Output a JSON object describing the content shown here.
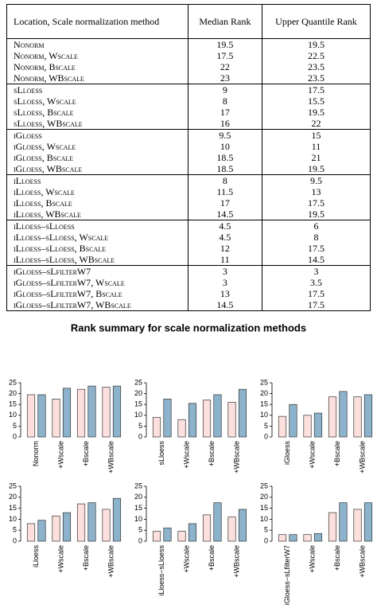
{
  "table": {
    "header": [
      "Location, Scale normalization method",
      "Median Rank",
      "Upper Quantile Rank"
    ],
    "groups": [
      [
        [
          "Nonorm",
          19.5,
          19.5
        ],
        [
          "Nonorm, Wscale",
          17.5,
          22.5
        ],
        [
          "Nonorm, Bscale",
          22,
          23.5
        ],
        [
          "Nonorm, WBscale",
          23,
          23.5
        ]
      ],
      [
        [
          "sLloess",
          9,
          17.5
        ],
        [
          "sLloess, Wscale",
          8,
          15.5
        ],
        [
          "sLloess, Bscale",
          17,
          19.5
        ],
        [
          "sLloess, WBscale",
          16,
          22
        ]
      ],
      [
        [
          "iGloess",
          9.5,
          15
        ],
        [
          "iGloess, Wscale",
          10,
          11
        ],
        [
          "iGloess, Bscale",
          18.5,
          21
        ],
        [
          "iGloess, WBscale",
          18.5,
          19.5
        ]
      ],
      [
        [
          "iLloess",
          8,
          9.5
        ],
        [
          "iLloess, Wscale",
          11.5,
          13
        ],
        [
          "iLloess, Bscale",
          17,
          17.5
        ],
        [
          "iLloess, WBscale",
          14.5,
          19.5
        ]
      ],
      [
        [
          "iLloess–sLloess",
          4.5,
          6
        ],
        [
          "iLloess–sLloess, Wscale",
          4.5,
          8
        ],
        [
          "iLloess–sLloess, Bscale",
          12,
          17.5
        ],
        [
          "iLloess–sLloess, WBscale",
          11,
          14.5
        ]
      ],
      [
        [
          "iGloess–sLfilterW7",
          3,
          3
        ],
        [
          "iGloess–sLfilterW7, Wscale",
          3,
          3.5
        ],
        [
          "iGloess–sLfilterW7, Bscale",
          13,
          17.5
        ],
        [
          "iGloess–sLfilterW7, WBscale",
          14.5,
          17.5
        ]
      ]
    ]
  },
  "figure_title": "Rank summary for scale normalization methods",
  "chart_data": [
    {
      "type": "bar",
      "categories": [
        "Nonorm",
        "+Wscale",
        "+Bscale",
        "+WBscale"
      ],
      "series": [
        {
          "color": "#fde0dd",
          "values": [
            19.5,
            17.5,
            22,
            23
          ]
        },
        {
          "color": "#8db3cc",
          "values": [
            19.5,
            22.5,
            23.5,
            23.5
          ]
        }
      ],
      "ylim": [
        0,
        25
      ],
      "yticks": [
        0,
        5,
        10,
        15,
        20,
        25
      ]
    },
    {
      "type": "bar",
      "categories": [
        "sLloess",
        "+Wscale",
        "+Bscale",
        "+WBscale"
      ],
      "series": [
        {
          "color": "#fde0dd",
          "values": [
            9,
            8,
            17,
            16
          ]
        },
        {
          "color": "#8db3cc",
          "values": [
            17.5,
            15.5,
            19.5,
            22
          ]
        }
      ],
      "ylim": [
        0,
        25
      ],
      "yticks": [
        0,
        5,
        10,
        15,
        20,
        25
      ]
    },
    {
      "type": "bar",
      "categories": [
        "iGloess",
        "+Wscale",
        "+Bscale",
        "+WBscale"
      ],
      "series": [
        {
          "color": "#fde0dd",
          "values": [
            9.5,
            10,
            18.5,
            18.5
          ]
        },
        {
          "color": "#8db3cc",
          "values": [
            15,
            11,
            21,
            19.5
          ]
        }
      ],
      "ylim": [
        0,
        25
      ],
      "yticks": [
        0,
        5,
        10,
        15,
        20,
        25
      ]
    },
    {
      "type": "bar",
      "categories": [
        "iLloess",
        "+Wscale",
        "+Bscale",
        "+WBscale"
      ],
      "series": [
        {
          "color": "#fde0dd",
          "values": [
            8,
            11.5,
            17,
            14.5
          ]
        },
        {
          "color": "#8db3cc",
          "values": [
            9.5,
            13,
            17.5,
            19.5
          ]
        }
      ],
      "ylim": [
        0,
        25
      ],
      "yticks": [
        0,
        5,
        10,
        15,
        20,
        25
      ]
    },
    {
      "type": "bar",
      "categories": [
        "iLloess−sLloess",
        "+Wscale",
        "+Bscale",
        "+WBscale"
      ],
      "series": [
        {
          "color": "#fde0dd",
          "values": [
            4.5,
            4.5,
            12,
            11
          ]
        },
        {
          "color": "#8db3cc",
          "values": [
            6,
            8,
            17.5,
            14.5
          ]
        }
      ],
      "ylim": [
        0,
        25
      ],
      "yticks": [
        0,
        5,
        10,
        15,
        20,
        25
      ]
    },
    {
      "type": "bar",
      "categories": [
        "iGloess−sLfilterW7",
        "+Wscale",
        "+Bscale",
        "+WBscale"
      ],
      "series": [
        {
          "color": "#fde0dd",
          "values": [
            3,
            3,
            13,
            14.5
          ]
        },
        {
          "color": "#8db3cc",
          "values": [
            3,
            3.5,
            17.5,
            17.5
          ]
        }
      ],
      "ylim": [
        0,
        25
      ],
      "yticks": [
        0,
        5,
        10,
        15,
        20,
        25
      ]
    }
  ]
}
